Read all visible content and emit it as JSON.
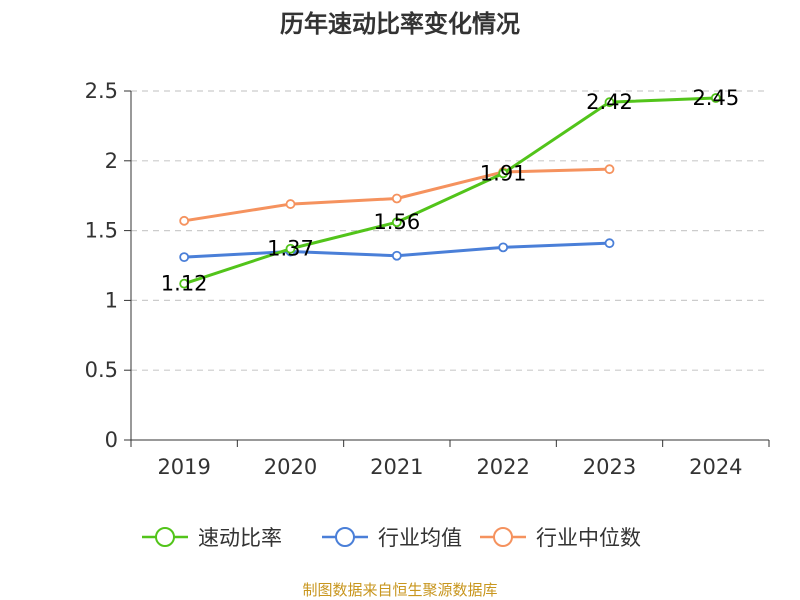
{
  "chart_data": {
    "type": "line",
    "title": "历年速动比率变化情况",
    "categories": [
      "2019",
      "2020",
      "2021",
      "2022",
      "2023",
      "2024"
    ],
    "ylim": [
      0,
      2.5
    ],
    "yticks": [
      "0",
      "0.5",
      "1",
      "1.5",
      "2",
      "2.5"
    ],
    "grid": true,
    "legend_position": "bottom",
    "series": [
      {
        "name": "速动比率",
        "color": "#52c41a",
        "values": [
          1.12,
          1.37,
          1.56,
          1.91,
          2.42,
          2.45
        ],
        "labels": [
          "1.12",
          "1.37",
          "1.56",
          "1.91",
          "2.42",
          "2.45"
        ],
        "show_labels": true
      },
      {
        "name": "行业均值",
        "color": "#4a7fd8",
        "values": [
          1.31,
          1.35,
          1.32,
          1.38,
          1.41,
          null
        ],
        "show_labels": false
      },
      {
        "name": "行业中位数",
        "color": "#f5925e",
        "values": [
          1.57,
          1.69,
          1.73,
          1.92,
          1.94,
          null
        ],
        "show_labels": false
      }
    ]
  },
  "source": "制图数据来自恒生聚源数据库"
}
